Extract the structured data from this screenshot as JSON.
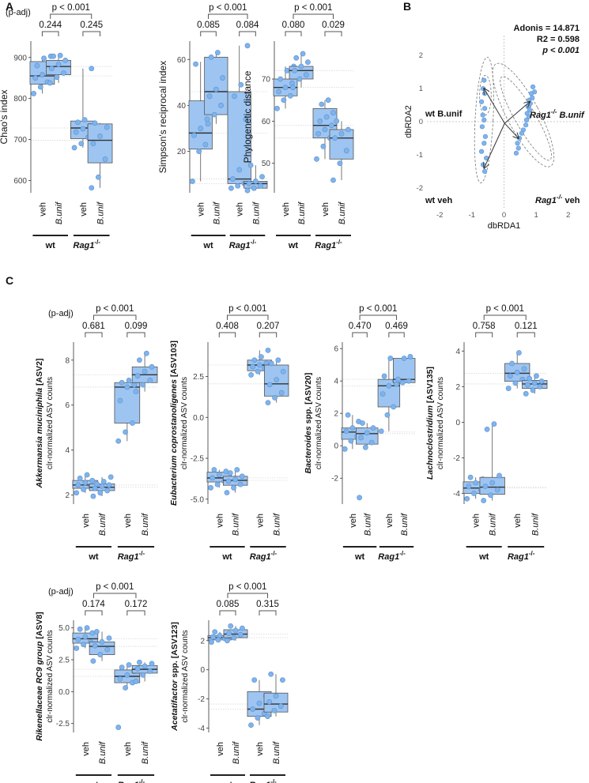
{
  "figure": {
    "panel_labels": {
      "A": "A",
      "B": "B",
      "C": "C"
    },
    "padj_label": "(p-adj)",
    "group_labels": {
      "wt": "wt",
      "rag": "Rag1",
      "rag_sup": "-/-"
    },
    "colors": {
      "box": "#9ec5f1",
      "point": "#7fb3ec",
      "point_edge": "#5d92cf",
      "median": "#333333",
      "line": "#000000",
      "grid": "#d8d8d8"
    }
  },
  "chart_data": [
    {
      "type": "boxplot",
      "panel": "A",
      "ylabel": "Chao's index",
      "yticks": [
        600,
        700,
        800,
        900
      ],
      "ylim": [
        570,
        940
      ],
      "categories": [
        "veh",
        "B.unif",
        "veh",
        "B.unif"
      ],
      "boxes": [
        {
          "q1": 835,
          "median": 855,
          "q3": 890,
          "min": 812,
          "max": 903,
          "points": [
            812,
            828,
            840,
            850,
            858,
            865,
            880,
            898,
            903
          ]
        },
        {
          "q1": 858,
          "median": 878,
          "q3": 893,
          "min": 838,
          "max": 905,
          "points": [
            838,
            852,
            862,
            873,
            883,
            893,
            903,
            905
          ]
        },
        {
          "q1": 702,
          "median": 728,
          "q3": 745,
          "min": 680,
          "max": 873,
          "points": [
            680,
            690,
            705,
            718,
            726,
            733,
            742,
            748,
            873
          ]
        },
        {
          "q1": 643,
          "median": 698,
          "q3": 738,
          "min": 582,
          "max": 740,
          "points": [
            582,
            608,
            652,
            690,
            708,
            730,
            740
          ]
        }
      ],
      "brackets": {
        "top": "p < 0.001",
        "left": "0.244",
        "right": "0.245"
      }
    },
    {
      "type": "boxplot",
      "panel": "A",
      "ylabel": "Simpson's reciprocal index",
      "yticks": [
        20,
        40,
        60
      ],
      "ylim": [
        2,
        68
      ],
      "categories": [
        "veh",
        "B.unif",
        "veh",
        "B.unif"
      ],
      "boxes": [
        {
          "q1": 21,
          "median": 28,
          "q3": 42,
          "min": 7,
          "max": 59,
          "points": [
            7,
            20,
            23,
            27,
            30,
            34,
            58
          ]
        },
        {
          "q1": 36,
          "median": 46,
          "q3": 61,
          "min": 32,
          "max": 63,
          "points": [
            32,
            36,
            40,
            44,
            47,
            52,
            61,
            63
          ]
        },
        {
          "q1": 6,
          "median": 8,
          "q3": 46,
          "min": 4,
          "max": 66,
          "points": [
            4,
            5,
            6,
            8,
            12,
            34,
            44,
            49,
            66
          ]
        },
        {
          "q1": 4,
          "median": 6,
          "q3": 7,
          "min": 3,
          "max": 14,
          "points": [
            3,
            4,
            5,
            6,
            7,
            9,
            14
          ]
        }
      ],
      "brackets": {
        "top": "p < 0.001",
        "left": "0.085",
        "right": "0.084"
      }
    },
    {
      "type": "boxplot",
      "panel": "A",
      "ylabel": "Phylogenetic distance",
      "yticks": [
        50,
        60,
        70
      ],
      "ylim": [
        43,
        79
      ],
      "categories": [
        "veh",
        "B.unif",
        "veh",
        "B.unif"
      ],
      "boxes": [
        {
          "q1": 66,
          "median": 68,
          "q3": 70,
          "min": 63,
          "max": 73,
          "points": [
            63,
            65,
            66,
            67,
            68,
            69,
            70,
            72,
            73
          ]
        },
        {
          "q1": 70,
          "median": 72,
          "q3": 73,
          "min": 68,
          "max": 76,
          "points": [
            68,
            70,
            71,
            72,
            73,
            74,
            75,
            76
          ]
        },
        {
          "q1": 56,
          "median": 59,
          "q3": 63,
          "min": 51,
          "max": 65,
          "points": [
            51,
            54,
            56,
            57,
            58,
            59,
            60,
            61,
            62,
            64,
            65
          ]
        },
        {
          "q1": 51,
          "median": 56,
          "q3": 58,
          "min": 46,
          "max": 60,
          "points": [
            46,
            50,
            53,
            56,
            57,
            58,
            60
          ]
        }
      ],
      "brackets": {
        "top": "p < 0.001",
        "left": "0.080",
        "right": "0.029"
      }
    },
    {
      "type": "scatter",
      "panel": "B",
      "xlabel": "dbRDA1",
      "ylabel": "dbRDA2",
      "xticks": [
        -2,
        -1,
        0,
        1,
        2
      ],
      "yticks": [
        -2,
        -1,
        0,
        1,
        2
      ],
      "xlim": [
        -2.4,
        2.4
      ],
      "ylim": [
        -2.6,
        2.6
      ],
      "annotations": [
        "Adonis = 14.871",
        "R2 = 0.598",
        "p < 0.001"
      ],
      "group_labels": {
        "wt_bunif": "wt B.unif",
        "rag_bunif": "B.unif",
        "wt_veh": "wt veh",
        "rag_veh": "veh"
      },
      "points": [
        [
          -0.62,
          1.25
        ],
        [
          -0.65,
          1.0
        ],
        [
          -0.6,
          0.85
        ],
        [
          -0.7,
          0.6
        ],
        [
          -0.6,
          0.4
        ],
        [
          -0.66,
          0.2
        ],
        [
          -0.62,
          0.05
        ],
        [
          -0.68,
          -0.15
        ],
        [
          -0.58,
          -0.45
        ],
        [
          -0.62,
          -0.65
        ],
        [
          -0.7,
          -0.9
        ],
        [
          -0.55,
          -1.1
        ],
        [
          -0.65,
          -1.3
        ],
        [
          -0.6,
          -1.5
        ],
        [
          0.9,
          1.05
        ],
        [
          0.95,
          0.9
        ],
        [
          0.85,
          0.85
        ],
        [
          0.88,
          0.72
        ],
        [
          0.78,
          0.65
        ],
        [
          0.82,
          0.55
        ],
        [
          0.75,
          0.45
        ],
        [
          0.8,
          0.35
        ],
        [
          0.72,
          0.25
        ],
        [
          0.78,
          0.15
        ],
        [
          0.7,
          0.05
        ],
        [
          0.68,
          -0.1
        ],
        [
          0.6,
          -0.25
        ],
        [
          0.55,
          -0.35
        ],
        [
          0.48,
          -0.5
        ],
        [
          0.42,
          -0.65
        ],
        [
          0.45,
          -0.8
        ],
        [
          0.38,
          -0.95
        ]
      ],
      "arrows": [
        [
          -0.62,
          1.0
        ],
        [
          -0.62,
          -1.4
        ],
        [
          0.8,
          0.6
        ],
        [
          0.45,
          -0.5
        ]
      ],
      "ellipses": [
        {
          "cx": -0.62,
          "cy": 0.05,
          "rx": 0.28,
          "ry": 1.9,
          "rot": 3
        },
        {
          "cx": 0.68,
          "cy": 0.1,
          "rx": 0.32,
          "ry": 1.45,
          "rot": -30
        },
        {
          "cx": 0.6,
          "cy": 0.2,
          "rx": 0.5,
          "ry": 1.75,
          "rot": -28
        },
        {
          "cx": -0.58,
          "cy": 0.8,
          "rx": 0.18,
          "ry": 0.6,
          "rot": 0
        }
      ]
    },
    {
      "type": "boxplot",
      "panel": "C",
      "ylabel_bold": "Akkermansia muciniphila",
      "ylabel_suffix": " [ASV2]",
      "ylabel2": "clr-normalized ASV counts",
      "yticks": [
        2,
        4,
        6,
        8
      ],
      "ylim": [
        1.6,
        8.8
      ],
      "categories": [
        "veh",
        "B.unif",
        "veh",
        "B.unif"
      ],
      "boxes": [
        {
          "q1": 2.3,
          "median": 2.45,
          "q3": 2.65,
          "min": 2.1,
          "max": 2.9,
          "points": [
            2.1,
            2.25,
            2.35,
            2.45,
            2.55,
            2.65,
            2.75,
            2.9
          ]
        },
        {
          "q1": 2.2,
          "median": 2.35,
          "q3": 2.5,
          "min": 1.95,
          "max": 2.8,
          "points": [
            1.95,
            2.1,
            2.2,
            2.3,
            2.4,
            2.45,
            2.5,
            2.6,
            2.8
          ]
        },
        {
          "q1": 5.2,
          "median": 6.8,
          "q3": 7.0,
          "min": 4.4,
          "max": 7.1,
          "points": [
            4.4,
            4.8,
            5.2,
            6.2,
            6.8,
            6.9,
            7.0,
            7.1
          ]
        },
        {
          "q1": 7.0,
          "median": 7.35,
          "q3": 7.7,
          "min": 6.6,
          "max": 8.3,
          "points": [
            6.6,
            6.9,
            7.1,
            7.3,
            7.5,
            7.7,
            8.0,
            8.3
          ]
        }
      ],
      "brackets": {
        "top": "p < 0.001",
        "left": "0.681",
        "right": "0.099"
      }
    },
    {
      "type": "boxplot",
      "panel": "C",
      "ylabel_bold": "Eubacterium coprostanoligenes",
      "ylabel_suffix": " [ASV103]",
      "ylabel2": "clr-normalized ASV counts",
      "yticks": [
        -5.0,
        -2.5,
        0.0,
        2.5
      ],
      "ylim": [
        -5.3,
        4.6
      ],
      "tick_format": 1,
      "categories": [
        "veh",
        "B.unif",
        "veh",
        "B.unif"
      ],
      "boxes": [
        {
          "q1": -3.95,
          "median": -3.7,
          "q3": -3.35,
          "min": -4.3,
          "max": -3.2,
          "points": [
            -4.3,
            -4.1,
            -3.9,
            -3.7,
            -3.5,
            -3.3,
            -3.2
          ]
        },
        {
          "q1": -4.15,
          "median": -3.85,
          "q3": -3.6,
          "min": -4.6,
          "max": -3.2,
          "points": [
            -4.6,
            -4.3,
            -4.1,
            -3.9,
            -3.8,
            -3.6,
            -3.4,
            -3.2
          ]
        },
        {
          "q1": 2.85,
          "median": 3.2,
          "q3": 3.5,
          "min": 2.6,
          "max": 4.1,
          "points": [
            2.6,
            2.8,
            3.0,
            3.1,
            3.2,
            3.3,
            3.5,
            3.7,
            4.1
          ]
        },
        {
          "q1": 1.3,
          "median": 2.05,
          "q3": 3.2,
          "min": 0.9,
          "max": 3.5,
          "points": [
            0.9,
            1.2,
            1.5,
            2.0,
            2.3,
            2.8,
            3.3,
            3.5
          ]
        }
      ],
      "brackets": {
        "top": "p < 0.001",
        "left": "0.408",
        "right": "0.207"
      }
    },
    {
      "type": "boxplot",
      "panel": "C",
      "ylabel_bold": "Bacteroides",
      "ylabel_suffix": " spp. [ASV20]",
      "ylabel2": "clr-normalized ASV counts",
      "yticks": [
        -2,
        0,
        2,
        4,
        6
      ],
      "ylim": [
        -3.6,
        6.4
      ],
      "categories": [
        "veh",
        "B.unif",
        "veh",
        "B.unif"
      ],
      "boxes": [
        {
          "q1": 0.4,
          "median": 0.85,
          "q3": 1.1,
          "min": -0.2,
          "max": 1.9,
          "points": [
            -0.2,
            0.3,
            0.6,
            0.9,
            1.1,
            1.5,
            1.9
          ]
        },
        {
          "q1": 0.1,
          "median": 0.75,
          "q3": 1.1,
          "min": -0.1,
          "max": 1.4,
          "points": [
            -3.2,
            -0.1,
            0.2,
            0.5,
            0.8,
            1.1,
            1.4
          ]
        },
        {
          "q1": 2.4,
          "median": 3.7,
          "q3": 4.1,
          "min": 0.9,
          "max": 5.4,
          "points": [
            0.9,
            1.9,
            2.4,
            3.2,
            3.7,
            4.0,
            4.3,
            5.4
          ]
        },
        {
          "q1": 3.9,
          "median": 4.1,
          "q3": 5.4,
          "min": 3.8,
          "max": 5.5,
          "points": [
            3.8,
            3.9,
            4.0,
            4.1,
            5.4,
            5.5
          ]
        }
      ],
      "brackets": {
        "top": "p < 0.001",
        "left": "0.470",
        "right": "0.469"
      }
    },
    {
      "type": "boxplot",
      "panel": "C",
      "ylabel_bold": "Lachnoclostridium",
      "ylabel_suffix": " [ASV135]",
      "ylabel2": "clr-normalized ASV counts",
      "yticks": [
        -4,
        -2,
        0,
        2,
        4
      ],
      "ylim": [
        -4.6,
        4.5
      ],
      "categories": [
        "veh",
        "B.unif",
        "veh",
        "B.unif"
      ],
      "boxes": [
        {
          "q1": -4.0,
          "median": -3.7,
          "q3": -3.35,
          "min": -4.3,
          "max": -3.1,
          "points": [
            -4.3,
            -4.0,
            -3.8,
            -3.6,
            -3.4,
            -3.2,
            -3.1
          ]
        },
        {
          "q1": -4.05,
          "median": -3.65,
          "q3": -3.1,
          "min": -4.4,
          "max": -0.1,
          "points": [
            -4.4,
            -4.1,
            -3.8,
            -3.6,
            -3.4,
            -3.0,
            -0.4,
            -0.1
          ]
        },
        {
          "q1": 2.3,
          "median": 2.75,
          "q3": 3.3,
          "min": 1.9,
          "max": 3.9,
          "points": [
            1.9,
            2.2,
            2.4,
            2.6,
            2.8,
            3.0,
            3.3,
            3.9
          ]
        },
        {
          "q1": 1.9,
          "median": 2.15,
          "q3": 2.35,
          "min": 1.6,
          "max": 2.6,
          "points": [
            1.6,
            1.8,
            2.0,
            2.1,
            2.2,
            2.3,
            2.45,
            2.6
          ]
        }
      ],
      "brackets": {
        "top": "p < 0.001",
        "left": "0.758",
        "right": "0.121"
      }
    },
    {
      "type": "boxplot",
      "panel": "C",
      "ylabel_bold": "Rikenellaceae RC9 group",
      "ylabel_suffix": " [ASV8]",
      "ylabel2": "clr-normalized ASV counts",
      "yticks": [
        -2.5,
        0.0,
        2.5,
        5.0
      ],
      "ylim": [
        -3.2,
        5.6
      ],
      "tick_format": 1,
      "categories": [
        "veh",
        "B.unif",
        "veh",
        "B.unif"
      ],
      "boxes": [
        {
          "q1": 3.8,
          "median": 4.15,
          "q3": 4.6,
          "min": 3.4,
          "max": 5.0,
          "points": [
            3.4,
            3.7,
            3.9,
            4.1,
            4.3,
            4.6,
            4.9,
            5.0
          ]
        },
        {
          "q1": 2.9,
          "median": 3.55,
          "q3": 3.9,
          "min": 2.4,
          "max": 4.7,
          "points": [
            2.4,
            2.9,
            3.3,
            3.6,
            3.9,
            4.2,
            4.7
          ]
        },
        {
          "q1": 0.7,
          "median": 1.2,
          "q3": 1.7,
          "min": 0.3,
          "max": 2.1,
          "points": [
            -2.8,
            0.3,
            0.7,
            1.0,
            1.3,
            1.6,
            1.9,
            2.1
          ]
        },
        {
          "q1": 1.45,
          "median": 1.75,
          "q3": 2.05,
          "min": 0.8,
          "max": 2.3,
          "points": [
            0.8,
            1.3,
            1.6,
            1.8,
            2.0,
            2.2,
            2.3
          ]
        }
      ],
      "brackets": {
        "top": "p < 0.001",
        "left": "0.174",
        "right": "0.172"
      }
    },
    {
      "type": "boxplot",
      "panel": "C",
      "ylabel_bold": "Acetatifactor",
      "ylabel_suffix": " spp. [ASV123]",
      "ylabel2": "clr-normalized ASV counts",
      "yticks": [
        -4,
        -2,
        0,
        2
      ],
      "ylim": [
        -4.3,
        3.4
      ],
      "categories": [
        "veh",
        "B.unif",
        "veh",
        "B.unif"
      ],
      "boxes": [
        {
          "q1": 2.05,
          "median": 2.2,
          "q3": 2.35,
          "min": 1.9,
          "max": 2.6,
          "points": [
            1.9,
            2.05,
            2.15,
            2.25,
            2.35,
            2.5,
            2.6
          ]
        },
        {
          "q1": 2.2,
          "median": 2.45,
          "q3": 2.75,
          "min": 2.0,
          "max": 3.0,
          "points": [
            2.0,
            2.2,
            2.4,
            2.5,
            2.7,
            2.85,
            3.0
          ]
        },
        {
          "q1": -3.2,
          "median": -2.7,
          "q3": -1.5,
          "min": -3.8,
          "max": -0.7,
          "points": [
            -3.8,
            -3.3,
            -3.0,
            -2.7,
            -2.3,
            -1.8,
            -0.7
          ]
        },
        {
          "q1": -2.9,
          "median": -2.35,
          "q3": -1.6,
          "min": -3.2,
          "max": -0.3,
          "points": [
            -3.2,
            -2.8,
            -2.5,
            -2.2,
            -1.8,
            -0.7,
            -0.3
          ]
        }
      ],
      "brackets": {
        "top": "p < 0.001",
        "left": "0.085",
        "right": "0.315"
      }
    }
  ]
}
